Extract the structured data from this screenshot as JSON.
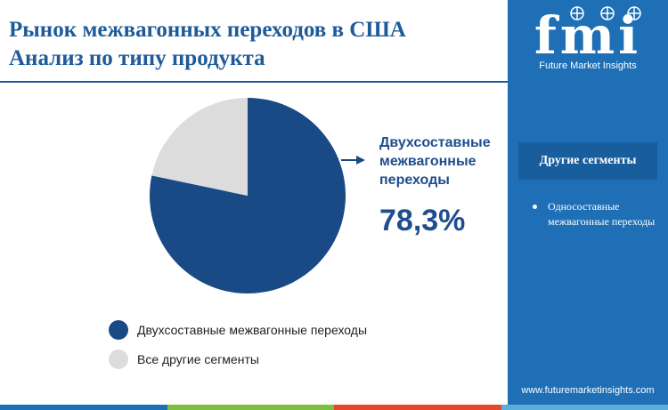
{
  "title_line1": "Рынок межвагонных переходов в США",
  "title_line2": "Анализ по типу продукта",
  "colors": {
    "primary": "#1a4a86",
    "secondary": "#dcdcdc",
    "accent_blue": "#1f5b9a",
    "sidebar": "#1e6fb5",
    "bottom_bar": [
      "#1e6fb5",
      "#7fbf3f",
      "#e04a2b",
      "#5aaed8"
    ]
  },
  "chart_data": {
    "type": "pie",
    "title": "",
    "slices": [
      {
        "label": "Двухсоставные межвагонные переходы",
        "value": 78.3,
        "color": "#1a4a86"
      },
      {
        "label": "Все другие сегменты",
        "value": 21.7,
        "color": "#dcdcdc"
      }
    ],
    "callout": {
      "label": "Двухсоставные межвагонные переходы",
      "value": "78,3%"
    },
    "legend": {
      "position": "bottom",
      "items": [
        {
          "label": "Двухсоставные межвагонные переходы",
          "color": "#1a4a86"
        },
        {
          "label": "Все другие сегменты",
          "color": "#dcdcdc"
        }
      ]
    }
  },
  "sidebar": {
    "logo_text": "fmi",
    "logo_subtitle": "Future Market Insights",
    "header": "Другие сегменты",
    "items": [
      "Односоставные межвагонные переходы"
    ],
    "website": "www.futuremarketinsights.com"
  }
}
